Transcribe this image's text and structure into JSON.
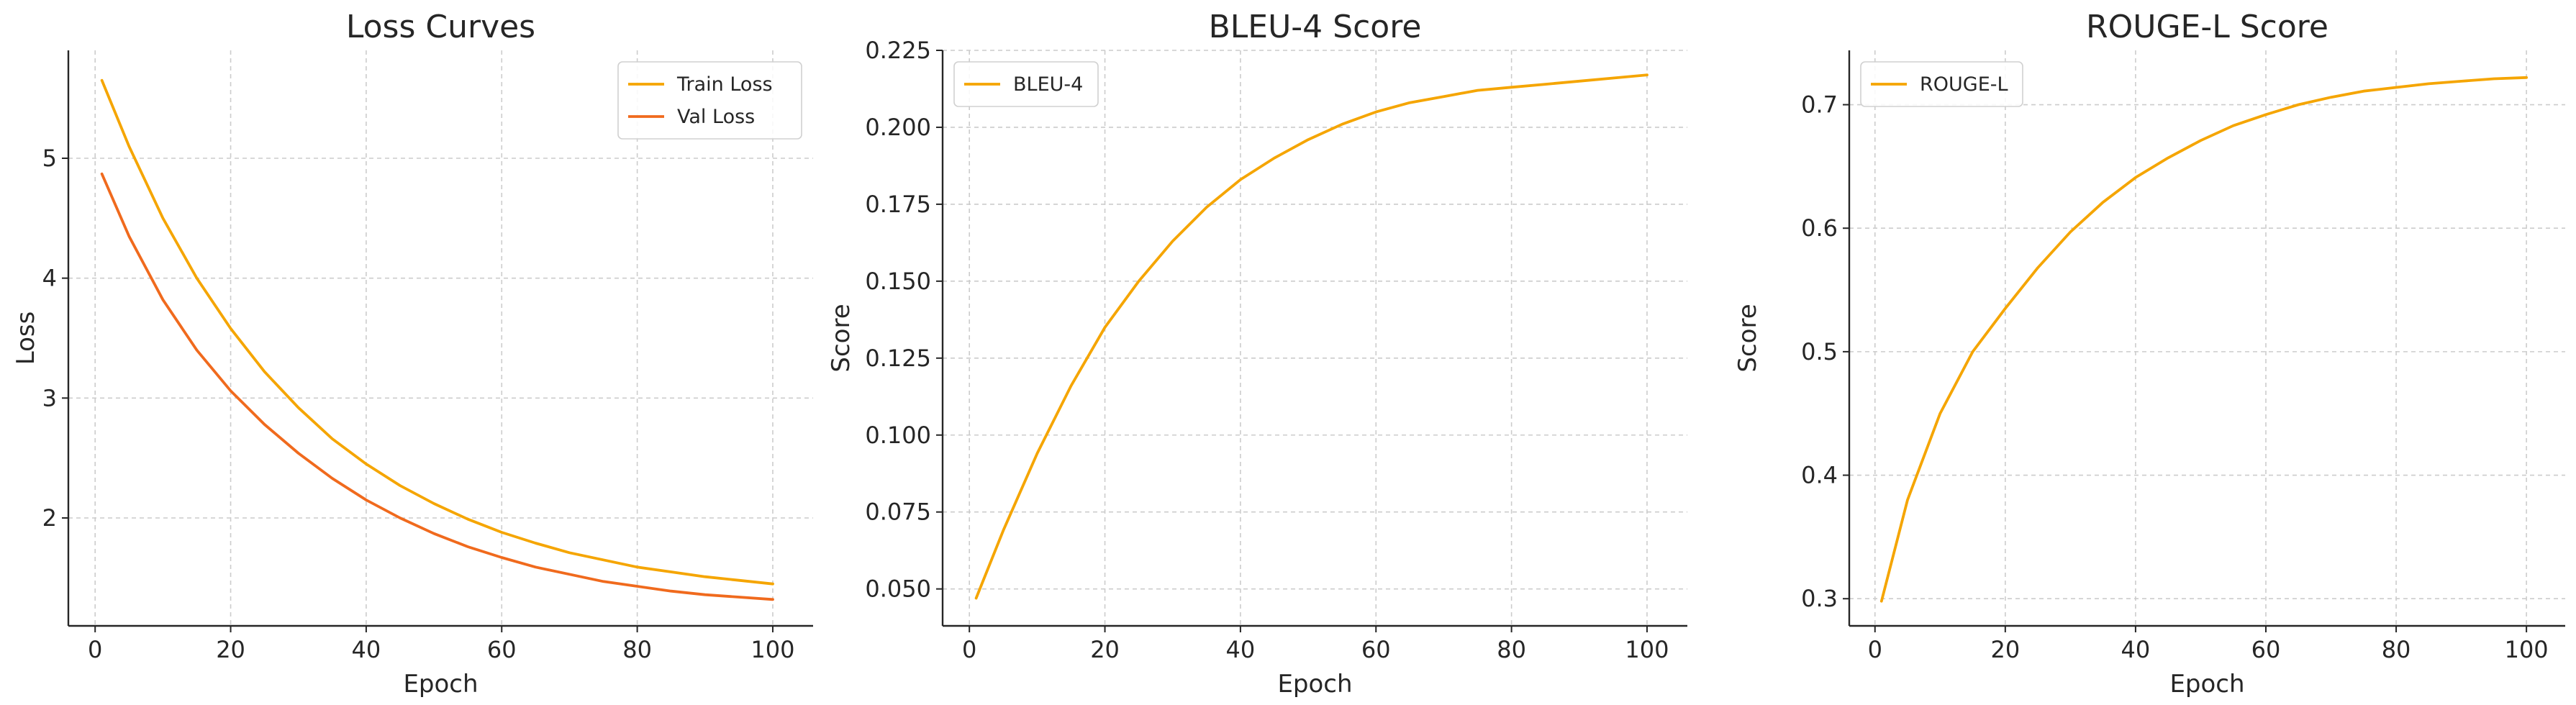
{
  "chart_data": [
    {
      "type": "line",
      "title": "Loss Curves",
      "xlabel": "Epoch",
      "ylabel": "Loss",
      "xlim": [
        -3.95,
        105.95
      ],
      "ylim": [
        1.1,
        5.9
      ],
      "xticks": [
        0,
        20,
        40,
        60,
        80,
        100
      ],
      "yticks": [
        2,
        3,
        4,
        5
      ],
      "ytick_labels": [
        "2",
        "3",
        "4",
        "5"
      ],
      "grid": true,
      "legend_position": "top-right",
      "series": [
        {
          "name": "Train Loss",
          "color": "#F5A500",
          "x": [
            1,
            5,
            10,
            15,
            20,
            25,
            30,
            35,
            40,
            45,
            50,
            55,
            60,
            65,
            70,
            75,
            80,
            85,
            90,
            95,
            100
          ],
          "y": [
            5.65,
            5.1,
            4.5,
            4.0,
            3.58,
            3.22,
            2.92,
            2.66,
            2.45,
            2.27,
            2.12,
            1.99,
            1.88,
            1.79,
            1.71,
            1.65,
            1.59,
            1.55,
            1.51,
            1.48,
            1.45
          ]
        },
        {
          "name": "Val Loss",
          "color": "#F06A1D",
          "x": [
            1,
            5,
            10,
            15,
            20,
            25,
            30,
            35,
            40,
            45,
            50,
            55,
            60,
            65,
            70,
            75,
            80,
            85,
            90,
            95,
            100
          ],
          "y": [
            4.87,
            4.35,
            3.82,
            3.4,
            3.06,
            2.78,
            2.54,
            2.33,
            2.15,
            2.0,
            1.87,
            1.76,
            1.67,
            1.59,
            1.53,
            1.47,
            1.43,
            1.39,
            1.36,
            1.34,
            1.32
          ]
        }
      ]
    },
    {
      "type": "line",
      "title": "BLEU-4 Score",
      "xlabel": "Epoch",
      "ylabel": "Score",
      "xlim": [
        -3.95,
        105.95
      ],
      "ylim": [
        0.038,
        0.225
      ],
      "xticks": [
        0,
        20,
        40,
        60,
        80,
        100
      ],
      "yticks": [
        0.05,
        0.075,
        0.1,
        0.125,
        0.15,
        0.175,
        0.2,
        0.225
      ],
      "ytick_labels": [
        "0.050",
        "0.075",
        "0.100",
        "0.125",
        "0.150",
        "0.175",
        "0.200",
        "0.225"
      ],
      "grid": true,
      "legend_position": "top-left",
      "series": [
        {
          "name": "BLEU-4",
          "color": "#F5A500",
          "x": [
            1,
            5,
            10,
            15,
            20,
            25,
            30,
            35,
            40,
            45,
            50,
            55,
            60,
            65,
            70,
            75,
            80,
            85,
            90,
            95,
            100
          ],
          "y": [
            0.047,
            0.069,
            0.094,
            0.116,
            0.135,
            0.15,
            0.163,
            0.174,
            0.183,
            0.19,
            0.196,
            0.201,
            0.205,
            0.208,
            0.21,
            0.212,
            0.213,
            0.214,
            0.215,
            0.216,
            0.217
          ]
        }
      ]
    },
    {
      "type": "line",
      "title": "ROUGE-L Score",
      "xlabel": "Epoch",
      "ylabel": "Score",
      "xlim": [
        -3.95,
        105.95
      ],
      "ylim": [
        0.278,
        0.744
      ],
      "xticks": [
        0,
        20,
        40,
        60,
        80,
        100
      ],
      "yticks": [
        0.3,
        0.4,
        0.5,
        0.6,
        0.7
      ],
      "ytick_labels": [
        "0.3",
        "0.4",
        "0.5",
        "0.6",
        "0.7"
      ],
      "grid": true,
      "legend_position": "top-left",
      "series": [
        {
          "name": "ROUGE-L",
          "color": "#F5A500",
          "x": [
            1,
            5,
            10,
            15,
            20,
            25,
            30,
            35,
            40,
            45,
            50,
            55,
            60,
            65,
            70,
            75,
            80,
            85,
            90,
            95,
            100
          ],
          "y": [
            0.298,
            0.38,
            0.45,
            0.5,
            0.535,
            0.568,
            0.597,
            0.621,
            0.641,
            0.657,
            0.671,
            0.683,
            0.692,
            0.7,
            0.706,
            0.711,
            0.714,
            0.717,
            0.719,
            0.721,
            0.722
          ]
        }
      ]
    }
  ]
}
